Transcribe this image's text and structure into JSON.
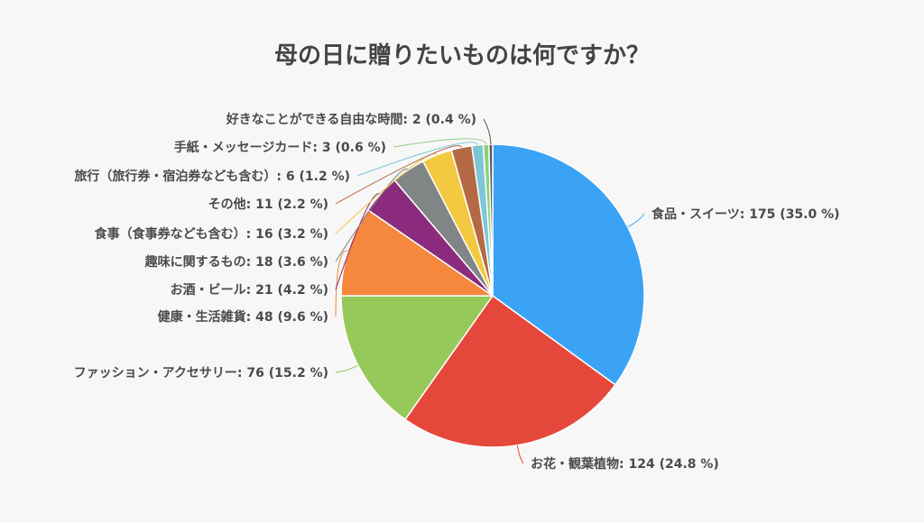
{
  "chart_data": {
    "type": "pie",
    "title": "母の日に贈りたいものは何ですか？",
    "slices": [
      {
        "label": "食品・スイーツ",
        "value": 175,
        "percent": "35.0 %",
        "color": "#3aa3f5"
      },
      {
        "label": "お花・観葉植物",
        "value": 124,
        "percent": "24.8 %",
        "color": "#e5483a"
      },
      {
        "label": "ファッション・アクセサリー",
        "value": 76,
        "percent": "15.2 %",
        "color": "#95c95a"
      },
      {
        "label": "健康・生活雑貨",
        "value": 48,
        "percent": "9.6 %",
        "color": "#f5883d"
      },
      {
        "label": "お酒・ビール",
        "value": 21,
        "percent": "4.2 %",
        "color": "#8b2b7d"
      },
      {
        "label": "趣味に関するもの",
        "value": 18,
        "percent": "3.6 %",
        "color": "#818585"
      },
      {
        "label": "食事（食事券なども含む）",
        "value": 16,
        "percent": "3.2 %",
        "color": "#f2c940"
      },
      {
        "label": "その他",
        "value": 11,
        "percent": "2.2 %",
        "color": "#b36a44"
      },
      {
        "label": "旅行（旅行券・宿泊券なども含む）",
        "value": 6,
        "percent": "1.2 %",
        "color": "#7cc6d8"
      },
      {
        "label": "手紙・メッセージカード",
        "value": 3,
        "percent": "0.6 %",
        "color": "#8fcf7a"
      },
      {
        "label": "好きなことができる自由な時間",
        "value": 2,
        "percent": "0.4 %",
        "color": "#5a5a5a"
      }
    ]
  }
}
